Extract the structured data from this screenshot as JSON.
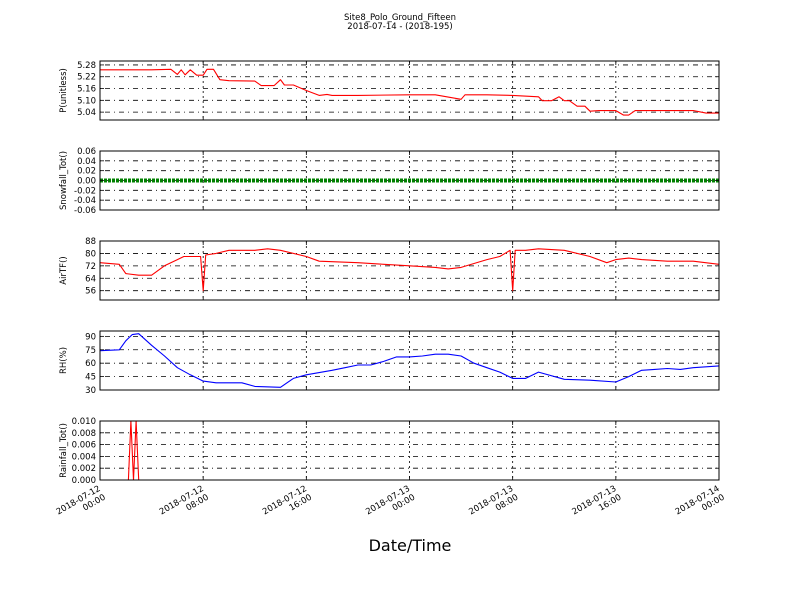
{
  "figure": {
    "title": "Site8_Polo_Ground_Fifteen",
    "subtitle": "2018-07-14 - (2018-195)",
    "xlabel": "Date/Time",
    "x_tick_labels": [
      [
        "2018-07-12",
        "00:00"
      ],
      [
        "2018-07-12",
        "08:00"
      ],
      [
        "2018-07-12",
        "16:00"
      ],
      [
        "2018-07-13",
        "00:00"
      ],
      [
        "2018-07-13",
        "08:00"
      ],
      [
        "2018-07-13",
        "16:00"
      ],
      [
        "2018-07-14",
        "00:00"
      ]
    ]
  },
  "chart_data": [
    {
      "type": "line",
      "ylabel": "P(unitless)",
      "color": "#ff0000",
      "ylim": [
        5.0,
        5.3
      ],
      "yticks": [
        "5.28",
        "5.22",
        "5.16",
        "5.10",
        "5.04"
      ],
      "ytick_values": [
        5.28,
        5.22,
        5.16,
        5.1,
        5.04
      ],
      "x_hours": [
        0,
        4,
        5.5,
        6,
        6.3,
        6.6,
        7,
        7.5,
        8,
        8.3,
        8.8,
        9.3,
        10,
        12,
        12.5,
        13.5,
        14,
        14.3,
        15,
        16,
        17,
        17.6,
        18,
        20,
        24,
        26,
        28,
        28.3,
        30,
        32,
        34,
        34.3,
        35,
        35.6,
        36,
        36.4,
        37,
        37.6,
        38,
        38.7,
        39,
        40,
        40.6,
        41,
        41.5,
        43,
        44,
        45,
        46,
        47,
        47.8,
        48
      ],
      "values": [
        5.255,
        5.255,
        5.258,
        5.232,
        5.255,
        5.23,
        5.255,
        5.228,
        5.228,
        5.258,
        5.258,
        5.205,
        5.2,
        5.198,
        5.175,
        5.175,
        5.205,
        5.178,
        5.178,
        5.15,
        5.125,
        5.13,
        5.125,
        5.125,
        5.128,
        5.128,
        5.105,
        5.128,
        5.128,
        5.125,
        5.118,
        5.098,
        5.098,
        5.118,
        5.098,
        5.098,
        5.07,
        5.07,
        5.045,
        5.048,
        5.048,
        5.048,
        5.025,
        5.025,
        5.048,
        5.048,
        5.048,
        5.048,
        5.048,
        5.035,
        5.035,
        5.035
      ]
    },
    {
      "type": "line",
      "ylabel": "Snowfall_Tot()",
      "color": "#008000",
      "ylim": [
        -0.06,
        0.06
      ],
      "yticks": [
        "0.06",
        "0.04",
        "0.02",
        "0.00",
        "-0.02",
        "-0.04",
        "-0.06"
      ],
      "ytick_values": [
        0.06,
        0.04,
        0.02,
        0.0,
        -0.02,
        -0.04,
        -0.06
      ],
      "x_hours": [
        0,
        48
      ],
      "values": [
        0.0,
        0.0
      ]
    },
    {
      "type": "line",
      "ylabel": "AirTF()",
      "color": "#ff0000",
      "ylim": [
        50,
        88
      ],
      "yticks": [
        "88",
        "80",
        "72",
        "64",
        "56"
      ],
      "ytick_values": [
        88,
        80,
        72,
        64,
        56
      ],
      "x_hours": [
        0,
        1.5,
        2,
        3,
        4,
        5,
        6,
        6.5,
        7,
        7.8,
        8,
        8.2,
        9,
        10,
        12,
        13,
        14,
        16,
        17,
        20,
        22,
        24,
        26,
        27,
        28,
        30,
        31,
        31.8,
        32,
        32.2,
        32.5,
        33,
        34,
        36,
        38,
        39.3,
        40,
        41,
        42,
        44,
        46,
        48
      ],
      "values": [
        74,
        73,
        67,
        66,
        66,
        72,
        76,
        78,
        78,
        78,
        56,
        79,
        80,
        82,
        82,
        83,
        82,
        78,
        75,
        74,
        73,
        72,
        71,
        70,
        71,
        76,
        78,
        82,
        56,
        82,
        82,
        82,
        83,
        82,
        78,
        74,
        76,
        77,
        76,
        75,
        75,
        73
      ]
    },
    {
      "type": "line",
      "ylabel": "RH(%)",
      "color": "#0000ff",
      "ylim": [
        30,
        96
      ],
      "yticks": [
        "90",
        "75",
        "60",
        "45",
        "30"
      ],
      "ytick_values": [
        90,
        75,
        60,
        45,
        30
      ],
      "x_hours": [
        0,
        1.5,
        2,
        2.5,
        3,
        4,
        5,
        6,
        7,
        8,
        9,
        10,
        11,
        12,
        14,
        15,
        16,
        18,
        19,
        20,
        21,
        22,
        23,
        24,
        25,
        26,
        27,
        28,
        29,
        30,
        31,
        32,
        33,
        34,
        36,
        38,
        40,
        41,
        42,
        43,
        44,
        45,
        46,
        47,
        48
      ],
      "values": [
        74,
        75,
        85,
        92,
        93,
        80,
        68,
        55,
        47,
        40,
        38,
        38,
        38,
        34,
        33,
        43,
        47,
        52,
        55,
        58,
        58,
        62,
        67,
        67,
        68,
        70,
        70,
        68,
        60,
        55,
        50,
        43,
        43,
        50,
        42,
        41,
        39,
        45,
        52,
        53,
        54,
        53,
        55,
        56,
        57
      ]
    },
    {
      "type": "line",
      "ylabel": "Rainfall_Tot()",
      "color": "#ff0000",
      "ylim": [
        0.0,
        0.01
      ],
      "yticks": [
        "0.010",
        "0.008",
        "0.006",
        "0.004",
        "0.002",
        "0.000"
      ],
      "ytick_values": [
        0.01,
        0.008,
        0.006,
        0.004,
        0.002,
        0.0
      ],
      "x_hours": [
        0,
        2.2,
        2.4,
        2.6,
        2.8,
        3.0,
        48
      ],
      "values": [
        0.0,
        0.0,
        0.01,
        0.0,
        0.01,
        0.0,
        0.0
      ]
    }
  ]
}
